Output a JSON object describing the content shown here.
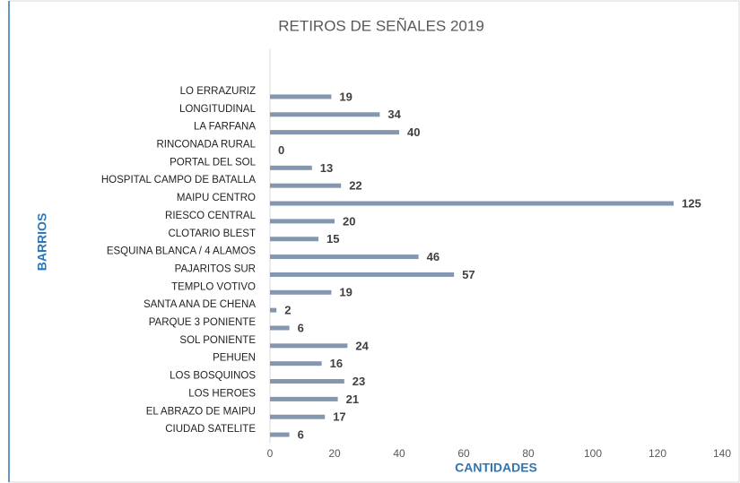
{
  "chart_data": {
    "type": "bar",
    "orientation": "horizontal",
    "title": "RETIROS DE SEÑALES 2019",
    "x_label": "CANTIDADES",
    "y_label": "BARRIOS",
    "categories": [
      "LO ERRAZURIZ",
      "LONGITUDINAL",
      "LA FARFANA",
      "RINCONADA RURAL",
      "PORTAL DEL SOL",
      "HOSPITAL CAMPO DE BATALLA",
      "MAIPU CENTRO",
      "RIESCO CENTRAL",
      "CLOTARIO BLEST",
      "ESQUINA BLANCA / 4 ALAMOS",
      "PAJARITOS SUR",
      "TEMPLO VOTIVO",
      "SANTA ANA DE CHENA",
      "PARQUE 3 PONIENTE",
      "SOL PONIENTE",
      "PEHUEN",
      "LOS BOSQUINOS",
      "LOS HEROES",
      "EL ABRAZO DE MAIPU",
      "CIUDAD SATELITE"
    ],
    "values": [
      19,
      34,
      40,
      0,
      13,
      22,
      125,
      20,
      15,
      46,
      57,
      19,
      2,
      6,
      24,
      16,
      23,
      21,
      17,
      6
    ],
    "color": "#8497b0",
    "xlim": [
      0,
      140
    ],
    "xticks": [
      0,
      20,
      40,
      60,
      80,
      100,
      120,
      140
    ],
    "grid": false
  }
}
